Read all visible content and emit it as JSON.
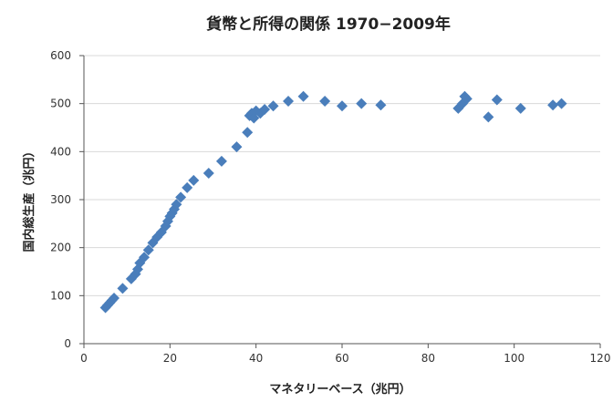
{
  "chart_data": {
    "type": "scatter",
    "title": "貨幣と所得の関係  1970−2009年",
    "xlabel": "マネタリーベース（兆円）",
    "ylabel": "国内総生産（兆円）",
    "xlim": [
      0,
      120
    ],
    "ylim": [
      0,
      600
    ],
    "xticks": [
      0,
      20,
      40,
      60,
      80,
      100,
      120
    ],
    "yticks": [
      0,
      100,
      200,
      300,
      400,
      500,
      600
    ],
    "grid": "horizontal",
    "legend": "none",
    "color": "#4a7ebb",
    "marker": "diamond",
    "series": [
      {
        "points": [
          [
            5,
            75
          ],
          [
            5.5,
            80
          ],
          [
            6,
            85
          ],
          [
            6.5,
            90
          ],
          [
            7,
            95
          ],
          [
            9,
            115
          ],
          [
            11,
            135
          ],
          [
            12,
            145
          ],
          [
            12.5,
            155
          ],
          [
            13,
            168
          ],
          [
            14,
            180
          ],
          [
            15,
            195
          ],
          [
            16,
            210
          ],
          [
            17,
            222
          ],
          [
            18,
            232
          ],
          [
            19,
            245
          ],
          [
            19.5,
            255
          ],
          [
            20,
            265
          ],
          [
            20.5,
            272
          ],
          [
            21,
            280
          ],
          [
            21.5,
            290
          ],
          [
            22.5,
            305
          ],
          [
            24,
            325
          ],
          [
            25.5,
            340
          ],
          [
            29,
            355
          ],
          [
            32,
            380
          ],
          [
            35.5,
            410
          ],
          [
            38,
            440
          ],
          [
            38.5,
            475
          ],
          [
            39,
            480
          ],
          [
            39.5,
            470
          ],
          [
            40,
            485
          ],
          [
            41,
            480
          ],
          [
            42,
            488
          ],
          [
            44,
            495
          ],
          [
            47.5,
            505
          ],
          [
            51,
            515
          ],
          [
            56,
            505
          ],
          [
            60,
            495
          ],
          [
            64.5,
            500
          ],
          [
            69,
            497
          ],
          [
            87,
            490
          ],
          [
            88,
            500
          ],
          [
            88.5,
            515
          ],
          [
            89,
            510
          ],
          [
            94,
            472
          ],
          [
            96,
            508
          ],
          [
            101.5,
            490
          ],
          [
            109,
            497
          ],
          [
            111,
            500
          ]
        ]
      }
    ]
  }
}
